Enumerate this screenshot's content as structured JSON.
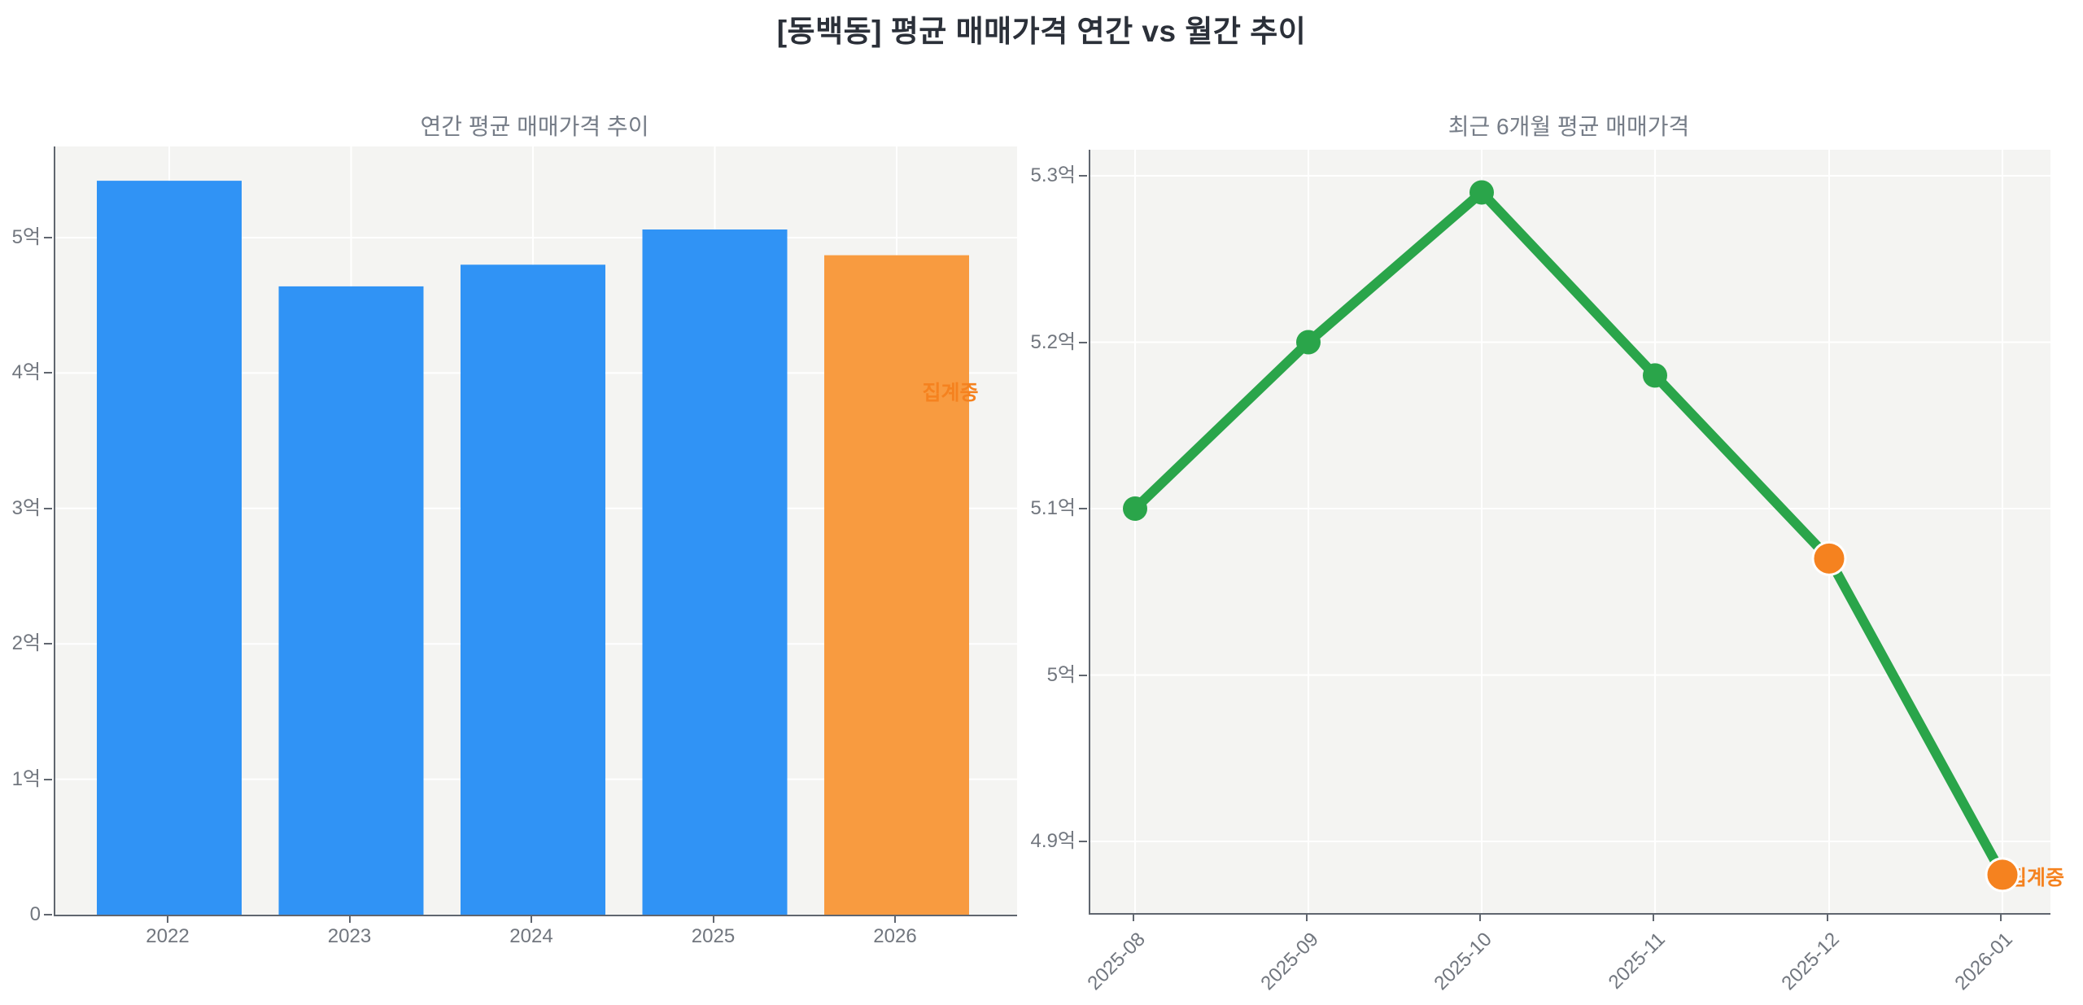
{
  "title": "[동백동] 평균 매매가격 연간 vs 월간 추이",
  "unit": "억",
  "colors": {
    "blue": "#3093f5",
    "orange_bar": "#f89b40",
    "orange": "#f5821f",
    "green": "#2aa54a",
    "plot_bg": "#f4f4f2",
    "grid": "#ffffff",
    "spine": "#60666f",
    "tick_label": "#71767e",
    "subplot_title": "#757c87",
    "main_title": "#2b3039"
  },
  "chart_data": [
    {
      "type": "bar",
      "title": "연간 평균 매매가격 추이",
      "categories": [
        "2022",
        "2023",
        "2024",
        "2025",
        "2026"
      ],
      "values": [
        5.42,
        4.64,
        4.8,
        5.06,
        4.87
      ],
      "bar_colors": [
        "blue",
        "blue",
        "blue",
        "blue",
        "orange_bar"
      ],
      "ylabel": "",
      "xlabel": "",
      "ylim": [
        0,
        5.67
      ],
      "grid": true,
      "yticks": [
        {
          "value": 0,
          "label": "0"
        },
        {
          "value": 1,
          "label": "1억"
        },
        {
          "value": 2,
          "label": "2억"
        },
        {
          "value": 3,
          "label": "3억"
        },
        {
          "value": 4,
          "label": "4억"
        },
        {
          "value": 5,
          "label": "5억"
        }
      ],
      "annotation": {
        "text": "집계중",
        "target": "2026"
      }
    },
    {
      "type": "line",
      "title": "최근 6개월 평균 매매가격",
      "categories": [
        "2025-08",
        "2025-09",
        "2025-10",
        "2025-11",
        "2025-12",
        "2026-01"
      ],
      "values": [
        5.1,
        5.2,
        5.29,
        5.18,
        5.07,
        4.88
      ],
      "point_colors": [
        "green",
        "green",
        "green",
        "green",
        "orange",
        "orange"
      ],
      "line_color": "green",
      "ylabel": "",
      "xlabel": "",
      "ylim": [
        4.86,
        5.32
      ],
      "grid": true,
      "x_tick_rotation": 45,
      "yticks": [
        {
          "value": 5.3,
          "label": "5.3억"
        },
        {
          "value": 5.2,
          "label": "5.2억"
        },
        {
          "value": 5.1,
          "label": "5.1억"
        },
        {
          "value": 5.0,
          "label": "5억"
        },
        {
          "value": 4.9,
          "label": "4.9억"
        }
      ],
      "annotation": {
        "text": "집계중",
        "target": "2026-01"
      }
    }
  ]
}
